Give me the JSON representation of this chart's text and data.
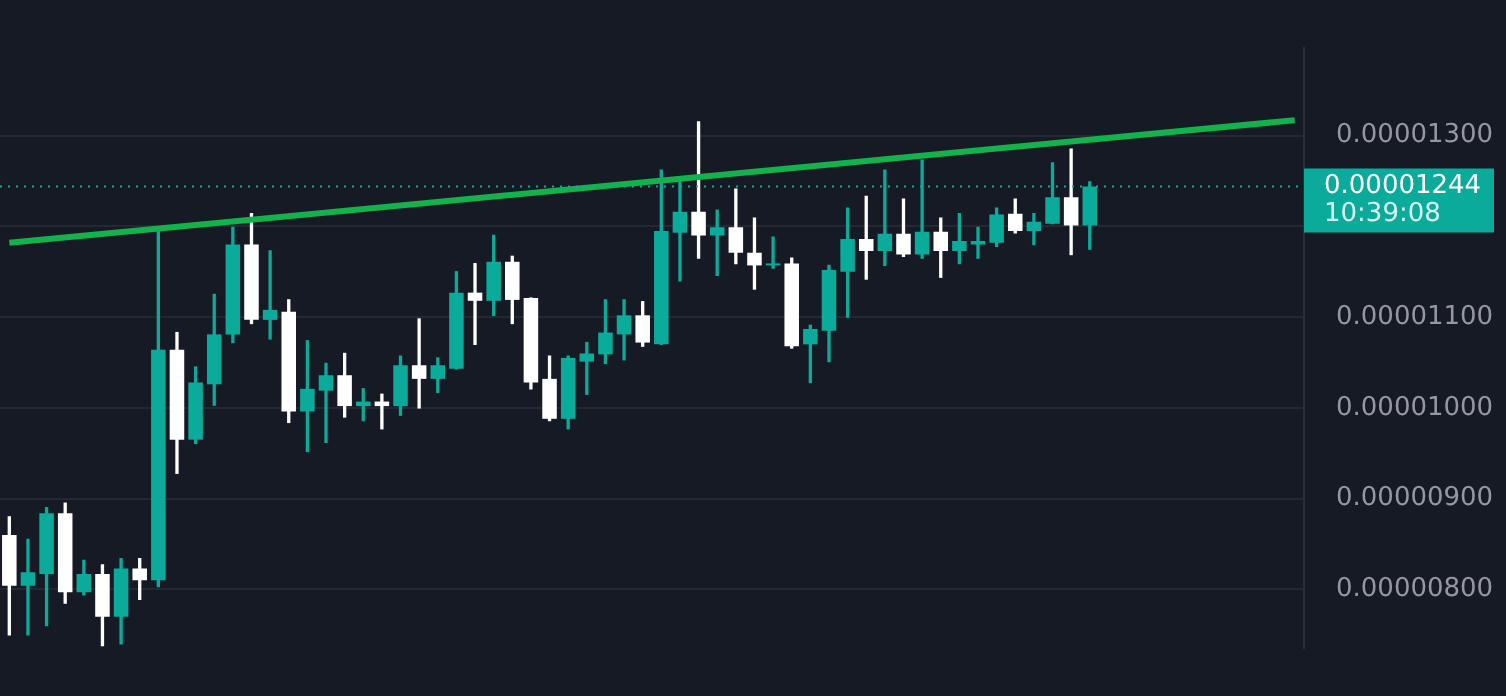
{
  "chart_data": {
    "type": "candlestick",
    "categories": [
      null,
      null,
      null,
      null,
      null,
      null,
      null,
      null,
      null,
      null,
      null,
      null,
      null,
      null,
      null,
      null,
      null,
      null,
      null,
      null,
      null,
      null,
      null,
      null,
      null,
      null,
      null,
      null,
      null,
      null,
      null,
      null,
      null,
      null,
      null,
      null,
      null,
      null,
      null,
      null,
      null,
      null,
      null,
      null,
      null,
      null,
      null,
      null,
      null,
      null,
      null,
      null,
      null,
      null,
      null,
      null,
      null,
      null,
      null,
      null,
      null,
      null,
      null,
      null,
      null,
      null,
      null,
      null,
      null,
      null
    ],
    "ohlc": [
      [
        8.6e-06,
        8.8e-06,
        7.5e-06,
        8.04e-06
      ],
      [
        8.04e-06,
        8.55e-06,
        7.5e-06,
        8.19e-06
      ],
      [
        8.17e-06,
        8.9e-06,
        7.6e-06,
        8.84e-06
      ],
      [
        8.84e-06,
        8.95e-06,
        7.85e-06,
        7.97e-06
      ],
      [
        7.97e-06,
        8.32e-06,
        7.94e-06,
        8.17e-06
      ],
      [
        8.17e-06,
        8.27e-06,
        7.38e-06,
        7.7e-06
      ],
      [
        7.7e-06,
        8.34e-06,
        7.4e-06,
        8.23e-06
      ],
      [
        8.23e-06,
        8.34e-06,
        7.89e-06,
        8.1e-06
      ],
      [
        8.1e-06,
        1.199e-05,
        8.03e-06,
        1.064e-05
      ],
      [
        1.064e-05,
        1.083e-05,
        9.28e-06,
        9.65e-06
      ],
      [
        9.65e-06,
        1.045e-05,
        9.61e-06,
        1.028e-05
      ],
      [
        1.026e-05,
        1.125e-05,
        1.003e-05,
        1.081e-05
      ],
      [
        1.081e-05,
        1.199e-05,
        1.072e-05,
        1.18e-05
      ],
      [
        1.18e-05,
        1.214e-05,
        1.093e-05,
        1.097e-05
      ],
      [
        1.097e-05,
        1.173e-05,
        1.076e-05,
        1.108e-05
      ],
      [
        1.106e-05,
        1.119e-05,
        9.84e-06,
        9.96e-06
      ],
      [
        9.96e-06,
        1.074e-05,
        9.52e-06,
        1.021e-05
      ],
      [
        1.019e-05,
        1.049e-05,
        9.62e-06,
        1.036e-05
      ],
      [
        1.036e-05,
        1.06e-05,
        9.9e-06,
        1.002e-05
      ],
      [
        1.002e-05,
        1.021e-05,
        9.86e-06,
        1.007e-05
      ],
      [
        1.007e-05,
        1.015e-05,
        9.77e-06,
        1.002e-05
      ],
      [
        1.002e-05,
        1.057e-05,
        9.92e-06,
        1.047e-05
      ],
      [
        1.047e-05,
        1.098e-05,
        1e-05,
        1.032e-05
      ],
      [
        1.032e-05,
        1.055e-05,
        1.017e-05,
        1.047e-05
      ],
      [
        1.043e-05,
        1.15e-05,
        1.043e-05,
        1.127e-05
      ],
      [
        1.127e-05,
        1.159e-05,
        1.07e-05,
        1.118e-05
      ],
      [
        1.118e-05,
        1.19e-05,
        1.102e-05,
        1.161e-05
      ],
      [
        1.161e-05,
        1.167e-05,
        1.093e-05,
        1.119e-05
      ],
      [
        1.121e-05,
        1.121e-05,
        1.021e-05,
        1.028e-05
      ],
      [
        1.032e-05,
        1.057e-05,
        9.86e-06,
        9.88e-06
      ],
      [
        9.88e-06,
        1.057e-05,
        9.77e-06,
        1.055e-05
      ],
      [
        1.051e-05,
        1.072e-05,
        1.015e-05,
        1.06e-05
      ],
      [
        1.059e-05,
        1.119e-05,
        1.049e-05,
        1.083e-05
      ],
      [
        1.081e-05,
        1.119e-05,
        1.053e-05,
        1.102e-05
      ],
      [
        1.102e-05,
        1.117e-05,
        1.068e-05,
        1.072e-05
      ],
      [
        1.07e-05,
        1.262e-05,
        1.07e-05,
        1.195e-05
      ],
      [
        1.193e-05,
        1.249e-05,
        1.14e-05,
        1.216e-05
      ],
      [
        1.216e-05,
        1.315e-05,
        1.165e-05,
        1.19e-05
      ],
      [
        1.19e-05,
        1.218e-05,
        1.146e-05,
        1.199e-05
      ],
      [
        1.199e-05,
        1.241e-05,
        1.159e-05,
        1.171e-05
      ],
      [
        1.171e-05,
        1.209e-05,
        1.131e-05,
        1.157e-05
      ],
      [
        1.157e-05,
        1.188e-05,
        1.154e-05,
        1.159e-05
      ],
      [
        1.159e-05,
        1.165e-05,
        1.066e-05,
        1.068e-05
      ],
      [
        1.07e-05,
        1.091e-05,
        1.028e-05,
        1.087e-05
      ],
      [
        1.085e-05,
        1.157e-05,
        1.051e-05,
        1.152e-05
      ],
      [
        1.15e-05,
        1.22e-05,
        1.1e-05,
        1.186e-05
      ],
      [
        1.186e-05,
        1.233e-05,
        1.142e-05,
        1.173e-05
      ],
      [
        1.173e-05,
        1.262e-05,
        1.157e-05,
        1.192e-05
      ],
      [
        1.192e-05,
        1.23e-05,
        1.167e-05,
        1.169e-05
      ],
      [
        1.169e-05,
        1.273e-05,
        1.165e-05,
        1.194e-05
      ],
      [
        1.194e-05,
        1.209e-05,
        1.144e-05,
        1.173e-05
      ],
      [
        1.173e-05,
        1.214e-05,
        1.159e-05,
        1.184e-05
      ],
      [
        1.18e-05,
        1.199e-05,
        1.165e-05,
        1.184e-05
      ],
      [
        1.182e-05,
        1.22e-05,
        1.178e-05,
        1.213e-05
      ],
      [
        1.214e-05,
        1.23e-05,
        1.193e-05,
        1.195e-05
      ],
      [
        1.195e-05,
        1.214e-05,
        1.18e-05,
        1.205e-05
      ],
      [
        1.203e-05,
        1.27e-05,
        1.203e-05,
        1.232e-05
      ],
      [
        1.232e-05,
        1.285e-05,
        1.169e-05,
        1.201e-05
      ],
      [
        1.201e-05,
        1.249e-05,
        1.175e-05,
        1.244e-05
      ],
      null,
      null,
      null,
      null,
      null,
      null,
      null,
      null,
      null,
      null,
      null
    ],
    "colors": [
      "#ffffff",
      "#0aab9b",
      "#0aab9b",
      "#ffffff",
      "#0aab9b",
      "#ffffff",
      "#0aab9b",
      "#ffffff",
      "#0aab9b",
      "#ffffff",
      "#0aab9b",
      "#0aab9b",
      "#0aab9b",
      "#ffffff",
      "#0aab9b",
      "#ffffff",
      "#0aab9b",
      "#0aab9b",
      "#ffffff",
      "#0aab9b",
      "#ffffff",
      "#0aab9b",
      "#ffffff",
      "#0aab9b",
      "#0aab9b",
      "#ffffff",
      "#0aab9b",
      "#ffffff",
      "#ffffff",
      "#ffffff",
      "#0aab9b",
      "#0aab9b",
      "#0aab9b",
      "#0aab9b",
      "#ffffff",
      "#0aab9b",
      "#0aab9b",
      "#ffffff",
      "#0aab9b",
      "#ffffff",
      "#ffffff",
      "#0aab9b",
      "#ffffff",
      "#0aab9b",
      "#0aab9b",
      "#0aab9b",
      "#ffffff",
      "#0aab9b",
      "#ffffff",
      "#0aab9b",
      "#ffffff",
      "#0aab9b",
      "#0aab9b",
      "#0aab9b",
      "#ffffff",
      "#0aab9b",
      "#0aab9b",
      "#ffffff",
      "#0aab9b",
      null,
      null,
      null,
      null,
      null,
      null,
      null,
      null,
      null,
      null,
      null
    ],
    "series": [
      {
        "type": "line",
        "color": "#14b24c",
        "values": [
          1.182e-05,
          null,
          null,
          null,
          null,
          null,
          null,
          null,
          null,
          null,
          null,
          null,
          null,
          null,
          null,
          null,
          null,
          null,
          null,
          null,
          null,
          null,
          null,
          null,
          null,
          null,
          null,
          null,
          null,
          null,
          null,
          null,
          null,
          null,
          null,
          null,
          null,
          null,
          null,
          null,
          null,
          null,
          null,
          null,
          null,
          null,
          null,
          null,
          null,
          null,
          null,
          null,
          null,
          null,
          null,
          null,
          null,
          null,
          null,
          null,
          null,
          null,
          null,
          null,
          null,
          null,
          null,
          null,
          null,
          1.317e-05
        ]
      }
    ],
    "ylim": [
      7.35e-06,
      1.397e-05
    ],
    "yticks": [
      {
        "value": 8e-06,
        "label": "0.00000800"
      },
      {
        "value": 9e-06,
        "label": "0.00000900"
      },
      {
        "value": 1e-05,
        "label": "0.00001000"
      },
      {
        "value": 1.1e-05,
        "label": "0.00001100"
      },
      {
        "value": 1.2e-05,
        "label": null
      },
      {
        "value": 1.3e-05,
        "label": "0.00001300"
      }
    ],
    "ref_lines": [
      {
        "axis": "y",
        "value": 1.244e-05,
        "label": "0.00001244",
        "color": "#0aab9b",
        "line_style": "dotted"
      }
    ],
    "annotations": [
      "10:39:08"
    ],
    "grid": "y",
    "legend": false,
    "tick_labels": "y",
    "marker": "none"
  }
}
